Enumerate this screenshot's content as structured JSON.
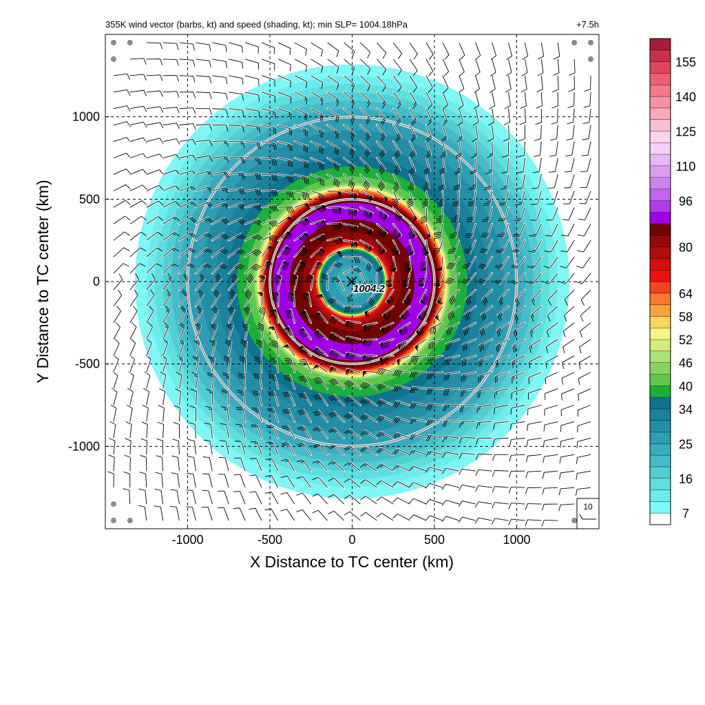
{
  "chart_data": {
    "type": "heatmap",
    "title_left": "355K wind vector (barbs, kt) and speed (shading, kt); min SLP= 1004.18hPa",
    "title_right": "+7.5h",
    "xlabel": "X Distance to TC center (km)",
    "ylabel": "Y Distance to TC center (km)",
    "xlim": [
      -1500,
      1500
    ],
    "ylim": [
      -1500,
      1500
    ],
    "x_ticks": [
      -1000,
      -500,
      0,
      500,
      1000
    ],
    "y_ticks": [
      1000,
      500,
      0,
      -500,
      -1000
    ],
    "x_tick_labels": [
      "-1000",
      "-500",
      "0",
      "500",
      "1000"
    ],
    "y_tick_labels": [
      "1000",
      "500",
      "0",
      "-500",
      "-1000"
    ],
    "grid": "dashed at tick values",
    "range_rings_km": [
      500,
      1000
    ],
    "center_marker": "×",
    "center_label": "1004.2",
    "reference_barb_label": "10",
    "colorbar": {
      "levels": [
        7,
        10,
        13,
        16,
        19,
        22,
        25,
        28,
        31,
        34,
        37,
        40,
        43,
        46,
        49,
        52,
        55,
        58,
        61,
        64,
        68,
        72,
        76,
        80,
        84,
        88,
        92,
        96,
        100,
        105,
        110,
        115,
        120,
        125,
        130,
        135,
        140,
        145,
        150,
        155,
        160
      ],
      "labels": [
        "7",
        "16",
        "25",
        "34",
        "40",
        "46",
        "52",
        "58",
        "64",
        "80",
        "96",
        "110",
        "125",
        "140",
        "155"
      ],
      "colors": [
        "#7ff7f7",
        "#6eecec",
        "#5fdede",
        "#52cdd2",
        "#45bcc7",
        "#39abbc",
        "#2f9db2",
        "#238ea6",
        "#1a829c",
        "#0f7390",
        "#1eae3a",
        "#5ec74e",
        "#86d363",
        "#ace07a",
        "#d3ea7d",
        "#f6f58a",
        "#fbd65a",
        "#f7a33e",
        "#f57a2f",
        "#f2461f",
        "#ef1010",
        "#d40e0e",
        "#b40c0c",
        "#940808",
        "#6e0404",
        "#a000e6",
        "#b23de8",
        "#c165ec",
        "#cd82ee",
        "#db9df2",
        "#e7b8f6",
        "#f4d0f8",
        "#fbd4ec",
        "#fbbfd4",
        "#faa9bb",
        "#f891a3",
        "#f4798c",
        "#ef5f73",
        "#e04660",
        "#c7304c",
        "#a61e3a"
      ]
    },
    "speed_profile": {
      "radii_km": [
        0,
        80,
        150,
        200,
        210,
        230,
        260,
        300,
        380,
        460,
        520,
        540,
        560,
        600,
        640,
        700,
        760,
        850,
        950,
        1050,
        1150,
        1250,
        1320
      ],
      "speed_kt": [
        24,
        24,
        28,
        40,
        58,
        74,
        80,
        84,
        88,
        90,
        84,
        70,
        58,
        42,
        40,
        37,
        34,
        30,
        27,
        22,
        16,
        10,
        7
      ]
    }
  }
}
